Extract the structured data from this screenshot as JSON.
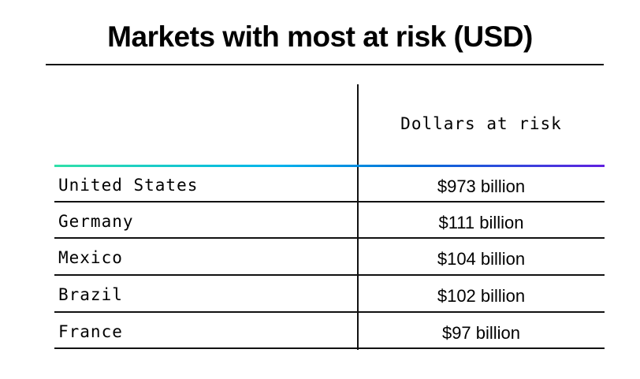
{
  "title": "Markets with most at risk (USD)",
  "colors": {
    "header_rule_gradient": [
      "#30e0a8",
      "#00b4ec",
      "#0070d8",
      "#6020e0"
    ]
  },
  "chart_data": {
    "type": "table",
    "title": "Markets with most at risk (USD)",
    "columns": [
      "",
      "Dollars at risk"
    ],
    "rows": [
      {
        "market": "United States",
        "value": "$973 billion"
      },
      {
        "market": "Germany",
        "value": "$111 billion"
      },
      {
        "market": "Mexico",
        "value": "$104 billion"
      },
      {
        "market": "Brazil",
        "value": "$102 billion"
      },
      {
        "market": "France",
        "value": "$97 billion"
      }
    ]
  }
}
